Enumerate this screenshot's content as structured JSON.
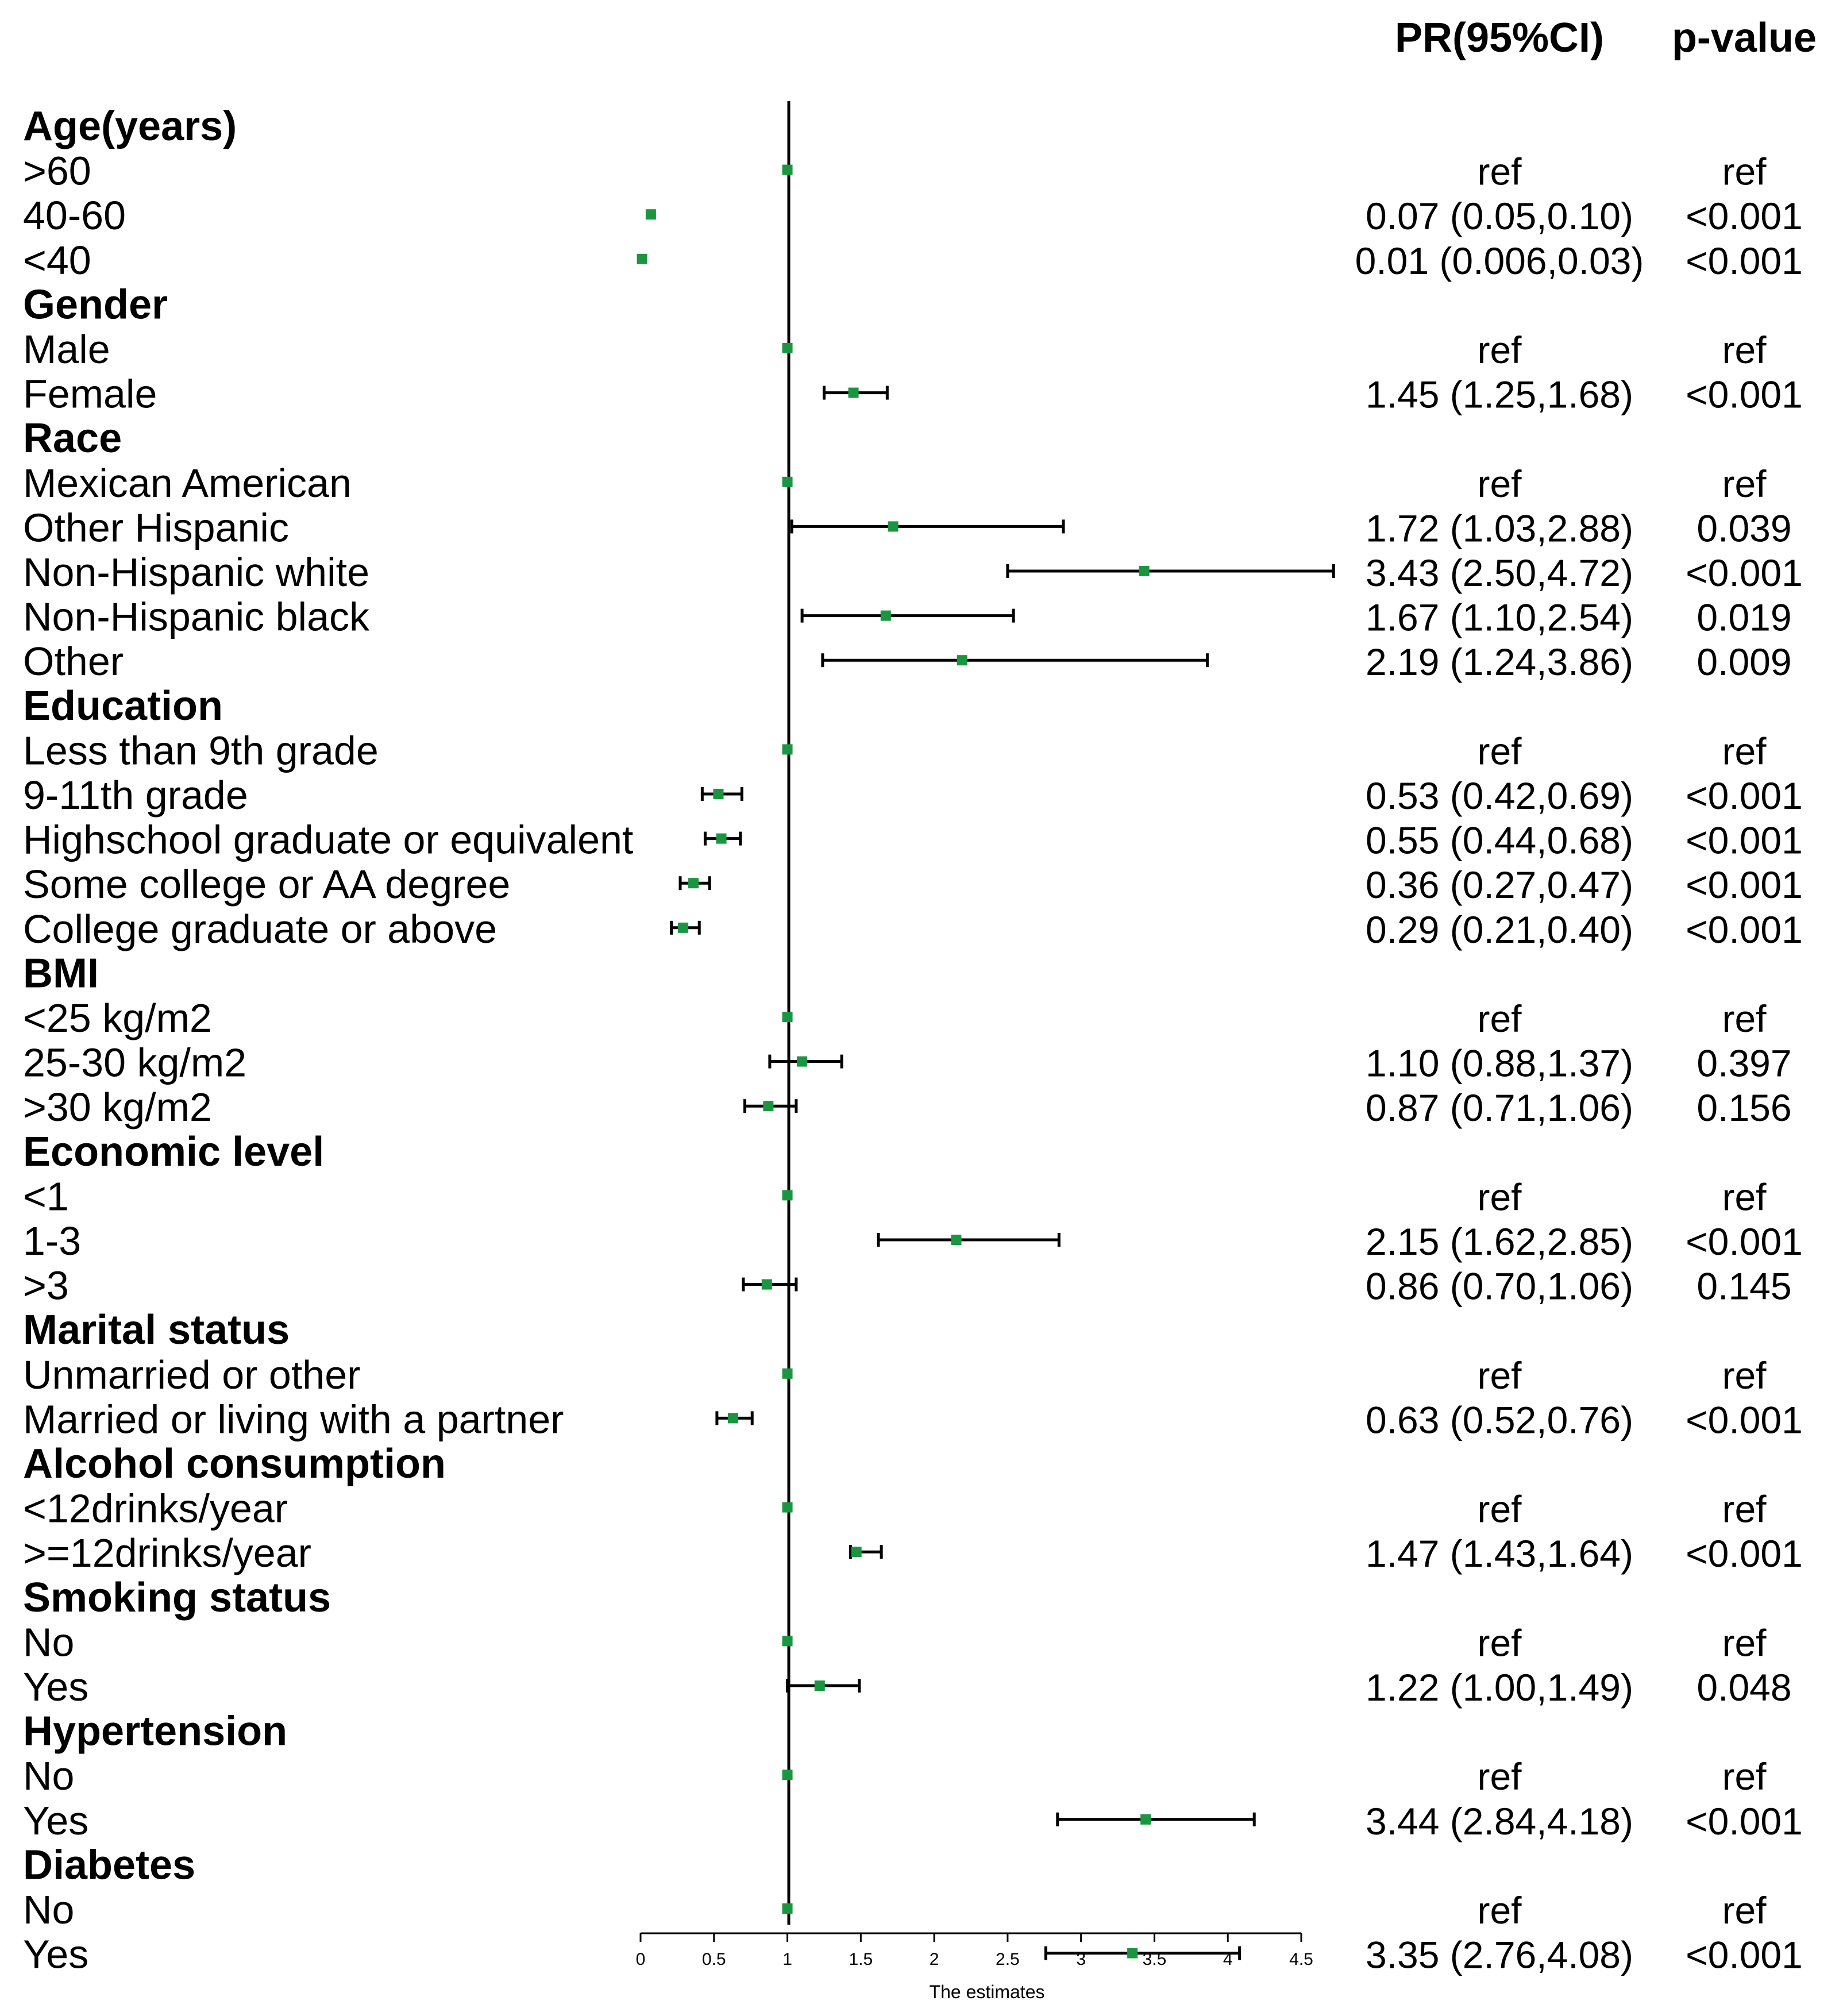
{
  "chart_data": {
    "type": "forest",
    "headers": {
      "pr": "PR(95%CI)",
      "p": "p-value"
    },
    "xlabel": "The estimates",
    "xlim": [
      0,
      4.5
    ],
    "x_ticks": [
      "0",
      "0.5",
      "1",
      "1.5",
      "2",
      "2.5",
      "3",
      "3.5",
      "4",
      "4.5"
    ],
    "reference_line": 1,
    "marker_color": "#1a9641",
    "rows": [
      {
        "kind": "group",
        "label": "Age(years)"
      },
      {
        "kind": "item",
        "label": ">60",
        "est": 1,
        "lo": null,
        "hi": null,
        "ci_text": "ref",
        "p_text": "ref"
      },
      {
        "kind": "item",
        "label": "40-60",
        "est": 0.07,
        "lo": 0.05,
        "hi": 0.1,
        "ci_text": "0.07 (0.05,0.10)",
        "p_text": "<0.001"
      },
      {
        "kind": "item",
        "label": "<40",
        "est": 0.01,
        "lo": 0.006,
        "hi": 0.03,
        "ci_text": "0.01 (0.006,0.03)",
        "p_text": "<0.001"
      },
      {
        "kind": "group",
        "label": "Gender"
      },
      {
        "kind": "item",
        "label": "Male",
        "est": 1,
        "lo": null,
        "hi": null,
        "ci_text": "ref",
        "p_text": "ref"
      },
      {
        "kind": "item",
        "label": "Female",
        "est": 1.45,
        "lo": 1.25,
        "hi": 1.68,
        "ci_text": "1.45 (1.25,1.68)",
        "p_text": "<0.001"
      },
      {
        "kind": "group",
        "label": "Race"
      },
      {
        "kind": "item",
        "label": "Mexican American",
        "est": 1,
        "lo": null,
        "hi": null,
        "ci_text": "ref",
        "p_text": "ref"
      },
      {
        "kind": "item",
        "label": "Other Hispanic",
        "est": 1.72,
        "lo": 1.03,
        "hi": 2.88,
        "ci_text": "1.72 (1.03,2.88)",
        "p_text": "0.039"
      },
      {
        "kind": "item",
        "label": "Non-Hispanic white",
        "est": 3.43,
        "lo": 2.5,
        "hi": 4.72,
        "ci_text": "3.43 (2.50,4.72)",
        "p_text": "<0.001"
      },
      {
        "kind": "item",
        "label": "Non-Hispanic black",
        "est": 1.67,
        "lo": 1.1,
        "hi": 2.54,
        "ci_text": "1.67 (1.10,2.54)",
        "p_text": "0.019"
      },
      {
        "kind": "item",
        "label": "Other",
        "est": 2.19,
        "lo": 1.24,
        "hi": 3.86,
        "ci_text": "2.19 (1.24,3.86)",
        "p_text": "0.009"
      },
      {
        "kind": "group",
        "label": "Education"
      },
      {
        "kind": "item",
        "label": "Less than 9th grade",
        "est": 1,
        "lo": null,
        "hi": null,
        "ci_text": "ref",
        "p_text": "ref"
      },
      {
        "kind": "item",
        "label": "9-11th grade",
        "est": 0.53,
        "lo": 0.42,
        "hi": 0.69,
        "ci_text": "0.53 (0.42,0.69)",
        "p_text": "<0.001"
      },
      {
        "kind": "item",
        "label": "Highschool graduate or equivalent",
        "est": 0.55,
        "lo": 0.44,
        "hi": 0.68,
        "ci_text": "0.55 (0.44,0.68)",
        "p_text": "<0.001"
      },
      {
        "kind": "item",
        "label": "Some college or AA degree",
        "est": 0.36,
        "lo": 0.27,
        "hi": 0.47,
        "ci_text": "0.36 (0.27,0.47)",
        "p_text": "<0.001"
      },
      {
        "kind": "item",
        "label": "College graduate or above",
        "est": 0.29,
        "lo": 0.21,
        "hi": 0.4,
        "ci_text": "0.29 (0.21,0.40)",
        "p_text": "<0.001"
      },
      {
        "kind": "group",
        "label": "BMI"
      },
      {
        "kind": "item",
        "label": "<25 kg/m2",
        "est": 1,
        "lo": null,
        "hi": null,
        "ci_text": "ref",
        "p_text": "ref"
      },
      {
        "kind": "item",
        "label": "25-30 kg/m2",
        "est": 1.1,
        "lo": 0.88,
        "hi": 1.37,
        "ci_text": "1.10 (0.88,1.37)",
        "p_text": "0.397"
      },
      {
        "kind": "item",
        "label": ">30 kg/m2",
        "est": 0.87,
        "lo": 0.71,
        "hi": 1.06,
        "ci_text": "0.87 (0.71,1.06)",
        "p_text": "0.156"
      },
      {
        "kind": "group",
        "label": "Economic level"
      },
      {
        "kind": "item",
        "label": "<1",
        "est": 1,
        "lo": null,
        "hi": null,
        "ci_text": "ref",
        "p_text": "ref"
      },
      {
        "kind": "item",
        "label": "1-3",
        "est": 2.15,
        "lo": 1.62,
        "hi": 2.85,
        "ci_text": "2.15 (1.62,2.85)",
        "p_text": "<0.001"
      },
      {
        "kind": "item",
        "label": ">3",
        "est": 0.86,
        "lo": 0.7,
        "hi": 1.06,
        "ci_text": "0.86 (0.70,1.06)",
        "p_text": "0.145"
      },
      {
        "kind": "group",
        "label": "Marital status"
      },
      {
        "kind": "item",
        "label": "Unmarried or other",
        "est": 1,
        "lo": null,
        "hi": null,
        "ci_text": "ref",
        "p_text": "ref"
      },
      {
        "kind": "item",
        "label": "Married or living with a partner",
        "est": 0.63,
        "lo": 0.52,
        "hi": 0.76,
        "ci_text": "0.63 (0.52,0.76)",
        "p_text": "<0.001"
      },
      {
        "kind": "group",
        "label": "Alcohol consumption"
      },
      {
        "kind": "item",
        "label": "<12drinks/year",
        "est": 1,
        "lo": null,
        "hi": null,
        "ci_text": "ref",
        "p_text": "ref"
      },
      {
        "kind": "item",
        "label": ">=12drinks/year",
        "est": 1.47,
        "lo": 1.43,
        "hi": 1.64,
        "ci_text": "1.47 (1.43,1.64)",
        "p_text": "<0.001"
      },
      {
        "kind": "group",
        "label": "Smoking status"
      },
      {
        "kind": "item",
        "label": "No",
        "est": 1,
        "lo": null,
        "hi": null,
        "ci_text": "ref",
        "p_text": "ref"
      },
      {
        "kind": "item",
        "label": "Yes",
        "est": 1.22,
        "lo": 1.0,
        "hi": 1.49,
        "ci_text": "1.22 (1.00,1.49)",
        "p_text": "0.048"
      },
      {
        "kind": "group",
        "label": "Hypertension"
      },
      {
        "kind": "item",
        "label": "No",
        "est": 1,
        "lo": null,
        "hi": null,
        "ci_text": "ref",
        "p_text": "ref"
      },
      {
        "kind": "item",
        "label": "Yes",
        "est": 3.44,
        "lo": 2.84,
        "hi": 4.18,
        "ci_text": "3.44 (2.84,4.18)",
        "p_text": "<0.001"
      },
      {
        "kind": "group",
        "label": "Diabetes"
      },
      {
        "kind": "item",
        "label": "No",
        "est": 1,
        "lo": null,
        "hi": null,
        "ci_text": "ref",
        "p_text": "ref"
      },
      {
        "kind": "item",
        "label": "Yes",
        "est": 3.35,
        "lo": 2.76,
        "hi": 4.08,
        "ci_text": "3.35 (2.76,4.08)",
        "p_text": "<0.001"
      }
    ]
  }
}
